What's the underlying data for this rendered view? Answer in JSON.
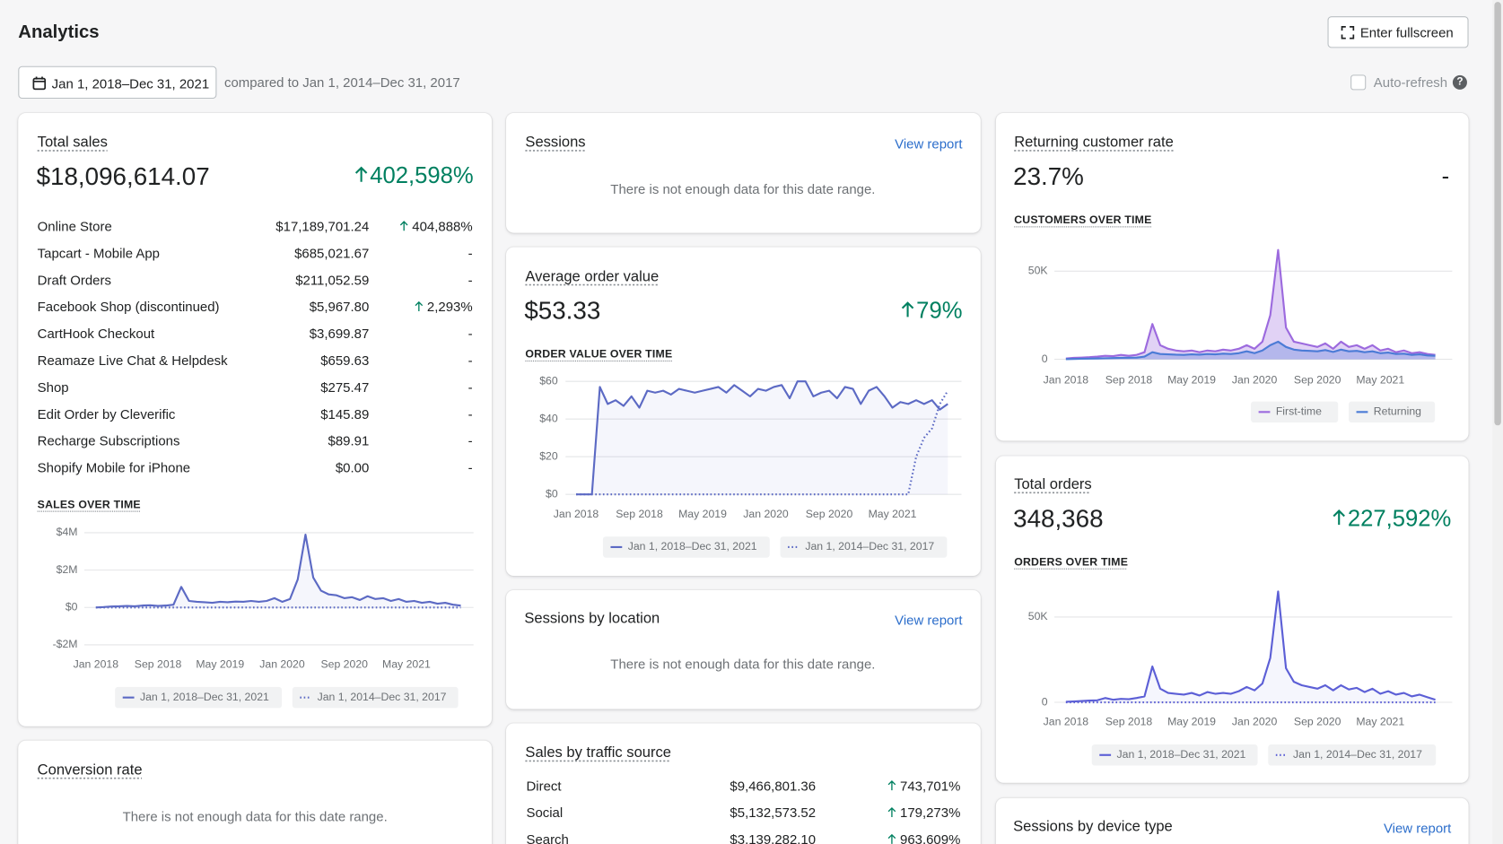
{
  "header": {
    "title": "Analytics",
    "fullscreen_button": "Enter fullscreen",
    "date_range": "Jan 1, 2018–Dec 31, 2021",
    "comparison": "compared to Jan 1, 2014–Dec 31, 2017",
    "auto_refresh": "Auto-refresh",
    "help_icon": "?"
  },
  "cards": {
    "total_sales": {
      "title": "Total sales",
      "value": "$18,096,614.07",
      "change": "402,598%",
      "trend": "up",
      "rows": [
        {
          "channel": "Online Store",
          "sales": "$17,189,701.24",
          "change": "404,888%",
          "trend": "up"
        },
        {
          "channel": "Tapcart - Mobile App",
          "sales": "$685,021.67",
          "change": "-"
        },
        {
          "channel": "Draft Orders",
          "sales": "$211,052.59",
          "change": "-"
        },
        {
          "channel": "Facebook Shop (discontinued)",
          "sales": "$5,967.80",
          "change": "2,293%",
          "trend": "up"
        },
        {
          "channel": "CartHook Checkout",
          "sales": "$3,699.87",
          "change": "-"
        },
        {
          "channel": "Reamaze Live Chat & Helpdesk",
          "sales": "$659.63",
          "change": "-"
        },
        {
          "channel": "Shop",
          "sales": "$275.47",
          "change": "-"
        },
        {
          "channel": "Edit Order by Cleverific",
          "sales": "$145.89",
          "change": "-"
        },
        {
          "channel": "Recharge Subscriptions",
          "sales": "$89.91",
          "change": "-"
        },
        {
          "channel": "Shopify Mobile for iPhone",
          "sales": "$0.00",
          "change": "-"
        }
      ]
    },
    "conversion_rate": {
      "title": "Conversion rate",
      "message": "There is not enough data for this date range."
    },
    "sessions": {
      "title": "Sessions",
      "link": "View report",
      "message": "There is not enough data for this date range."
    },
    "average_order_value": {
      "title": "Average order value",
      "value": "$53.33",
      "change": "79%",
      "trend": "up"
    },
    "sessions_by_location": {
      "title": "Sessions by location",
      "link": "View report",
      "message": "There is not enough data for this date range."
    },
    "sales_by_traffic_source": {
      "title": "Sales by traffic source",
      "rows": [
        {
          "source": "Direct",
          "sales": "$9,466,801.36",
          "change": "743,701%",
          "trend": "up"
        },
        {
          "source": "Social",
          "sales": "$5,132,573.52",
          "change": "179,273%",
          "trend": "up"
        },
        {
          "source": "Search",
          "sales": "$3,139,282.10",
          "change": "963,609%",
          "trend": "up"
        }
      ]
    },
    "returning_customer_rate": {
      "title": "Returning customer rate",
      "value": "23.7%",
      "change": "-"
    },
    "total_orders": {
      "title": "Total orders",
      "value": "348,368",
      "change": "227,592%",
      "trend": "up"
    },
    "sessions_by_device_type": {
      "title": "Sessions by device type",
      "link": "View report"
    }
  },
  "chart_data": [
    {
      "type": "line",
      "title": "SALES OVER TIME",
      "grid": true,
      "categories": [
        "Jan 2018",
        null,
        null,
        null,
        null,
        null,
        null,
        null,
        "Sep 2018",
        null,
        null,
        null,
        null,
        null,
        null,
        null,
        "May 2019",
        null,
        null,
        null,
        null,
        null,
        null,
        null,
        "Jan 2020",
        null,
        null,
        null,
        null,
        null,
        null,
        null,
        "Sep 2020",
        null,
        null,
        null,
        null,
        null,
        null,
        null,
        "May 2021",
        null,
        null,
        null,
        null,
        null,
        null,
        null
      ],
      "ylim": [
        -2000000,
        4000000
      ],
      "yticks": [
        {
          "value": 4000000,
          "label": "$4M"
        },
        {
          "value": 2000000,
          "label": "$2M"
        },
        {
          "value": 0,
          "label": "$0"
        },
        {
          "value": -2000000,
          "label": "-$2M"
        }
      ],
      "series": [
        {
          "name": "Jan 1, 2018–Dec 31, 2021",
          "color": "#5c6ac4",
          "line_style": "solid",
          "values": [
            0,
            20000,
            50000,
            60000,
            80000,
            60000,
            100000,
            120000,
            80000,
            100000,
            150000,
            1100000,
            350000,
            300000,
            280000,
            250000,
            300000,
            280000,
            320000,
            300000,
            350000,
            300000,
            350000,
            500000,
            300000,
            450000,
            1500000,
            3900000,
            1600000,
            900000,
            700000,
            650000,
            500000,
            550000,
            400000,
            600000,
            450000,
            500000,
            350000,
            450000,
            300000,
            350000,
            250000,
            300000,
            200000,
            250000,
            150000,
            100000
          ]
        },
        {
          "name": "Jan 1, 2014–Dec 31, 2017",
          "color": "#5c6ac4",
          "line_style": "dotted",
          "values": [
            0,
            0,
            0,
            0,
            0,
            0,
            0,
            0,
            0,
            0,
            0,
            0,
            0,
            0,
            0,
            0,
            0,
            0,
            0,
            0,
            0,
            0,
            0,
            0,
            0,
            0,
            0,
            0,
            0,
            0,
            0,
            0,
            0,
            0,
            0,
            0,
            0,
            0,
            0,
            0,
            0,
            0,
            0,
            0,
            0,
            0,
            0,
            0
          ]
        }
      ]
    },
    {
      "type": "line",
      "title": "ORDER VALUE OVER TIME",
      "grid": true,
      "categories": [
        "Jan 2018",
        null,
        null,
        null,
        null,
        null,
        null,
        null,
        "Sep 2018",
        null,
        null,
        null,
        null,
        null,
        null,
        null,
        "May 2019",
        null,
        null,
        null,
        null,
        null,
        null,
        null,
        "Jan 2020",
        null,
        null,
        null,
        null,
        null,
        null,
        null,
        "Sep 2020",
        null,
        null,
        null,
        null,
        null,
        null,
        null,
        "May 2021",
        null,
        null,
        null,
        null,
        null,
        null,
        null
      ],
      "ylim": [
        0,
        60
      ],
      "yticks": [
        {
          "value": 60,
          "label": "$60"
        },
        {
          "value": 40,
          "label": "$40"
        },
        {
          "value": 20,
          "label": "$20"
        },
        {
          "value": 0,
          "label": "$0"
        }
      ],
      "series": [
        {
          "name": "Jan 1, 2018–Dec 31, 2021",
          "color": "#5c6ac4",
          "line_style": "solid",
          "values": [
            0,
            0,
            0,
            57,
            48,
            50,
            47,
            52,
            46,
            55,
            54,
            55,
            53,
            56,
            55,
            54,
            55,
            56,
            57,
            54,
            58,
            55,
            52,
            56,
            55,
            57,
            58,
            51,
            60,
            60,
            52,
            54,
            55,
            51,
            57,
            56,
            48,
            55,
            57,
            52,
            46,
            49,
            48,
            50,
            48,
            50,
            45,
            48
          ]
        },
        {
          "name": "Jan 1, 2014–Dec 31, 2017",
          "color": "#5c6ac4",
          "line_style": "dotted",
          "values": [
            0,
            0,
            0,
            0,
            0,
            0,
            0,
            0,
            0,
            0,
            0,
            0,
            0,
            0,
            0,
            0,
            0,
            0,
            0,
            0,
            0,
            0,
            0,
            0,
            0,
            0,
            0,
            0,
            0,
            0,
            0,
            0,
            0,
            0,
            0,
            0,
            0,
            0,
            0,
            0,
            0,
            0,
            0,
            20,
            30,
            35,
            48,
            55
          ]
        }
      ]
    },
    {
      "type": "line",
      "title": "CUSTOMERS OVER TIME",
      "grid": true,
      "categories": [
        "Jan 2018",
        null,
        null,
        null,
        null,
        null,
        null,
        null,
        "Sep 2018",
        null,
        null,
        null,
        null,
        null,
        null,
        null,
        "May 2019",
        null,
        null,
        null,
        null,
        null,
        null,
        null,
        "Jan 2020",
        null,
        null,
        null,
        null,
        null,
        null,
        null,
        "Sep 2020",
        null,
        null,
        null,
        null,
        null,
        null,
        null,
        "May 2021",
        null,
        null,
        null,
        null,
        null,
        null,
        null
      ],
      "ylim": [
        0,
        65000
      ],
      "yticks": [
        {
          "value": 50000,
          "label": "50K"
        },
        0
      ],
      "series": [
        {
          "name": "First-time",
          "color": "#9c6ade",
          "line_style": "solid",
          "values": [
            500,
            800,
            1000,
            1200,
            1500,
            2000,
            1800,
            2500,
            2000,
            2500,
            4000,
            20000,
            8000,
            6000,
            5000,
            4500,
            5000,
            4000,
            5000,
            4500,
            5500,
            5000,
            6000,
            8000,
            6000,
            10000,
            25000,
            62000,
            18000,
            10000,
            9000,
            8000,
            7000,
            9000,
            6000,
            10000,
            7000,
            8000,
            6000,
            8000,
            5000,
            6000,
            4000,
            5000,
            3500,
            4000,
            3000,
            2500
          ]
        },
        {
          "name": "Returning",
          "color": "#4b7bd6",
          "line_style": "solid",
          "values": [
            100,
            200,
            300,
            400,
            500,
            600,
            700,
            800,
            900,
            1000,
            1500,
            4000,
            3000,
            2800,
            2600,
            2500,
            2800,
            2600,
            3000,
            2800,
            3200,
            3000,
            3500,
            4500,
            3500,
            5000,
            8000,
            10000,
            7000,
            5500,
            5000,
            4800,
            4500,
            5200,
            4200,
            5500,
            4500,
            4800,
            4000,
            4500,
            3500,
            3800,
            3000,
            3200,
            2500,
            2800,
            2200,
            2000
          ]
        }
      ]
    },
    {
      "type": "line",
      "title": "ORDERS OVER TIME",
      "grid": true,
      "categories": [
        "Jan 2018",
        null,
        null,
        null,
        null,
        null,
        null,
        null,
        "Sep 2018",
        null,
        null,
        null,
        null,
        null,
        null,
        null,
        "May 2019",
        null,
        null,
        null,
        null,
        null,
        null,
        null,
        "Jan 2020",
        null,
        null,
        null,
        null,
        null,
        null,
        null,
        "Sep 2020",
        null,
        null,
        null,
        null,
        null,
        null,
        null,
        "May 2021",
        null,
        null,
        null,
        null,
        null,
        null,
        null
      ],
      "ylim": [
        0,
        70000
      ],
      "yticks": [
        {
          "value": 50000,
          "label": "50K"
        },
        0
      ],
      "series": [
        {
          "name": "Jan 1, 2018–Dec 31, 2021",
          "color": "#5c5fd6",
          "line_style": "solid",
          "values": [
            300,
            500,
            800,
            1000,
            1200,
            2500,
            1500,
            2000,
            1800,
            2500,
            3500,
            21000,
            8000,
            5500,
            5000,
            4500,
            5500,
            4000,
            6000,
            5000,
            5500,
            5000,
            6500,
            9000,
            7000,
            11000,
            26000,
            65000,
            20000,
            12000,
            10000,
            9000,
            8000,
            10000,
            7000,
            10000,
            7500,
            8500,
            6000,
            8000,
            5000,
            6500,
            4500,
            5500,
            3500,
            4500,
            3000,
            1500
          ]
        },
        {
          "name": "Jan 1, 2014–Dec 31, 2017",
          "color": "#5c5fd6",
          "line_style": "dotted",
          "values": [
            0,
            0,
            0,
            0,
            0,
            0,
            0,
            0,
            0,
            0,
            0,
            0,
            0,
            0,
            0,
            0,
            0,
            0,
            0,
            0,
            0,
            0,
            0,
            0,
            0,
            0,
            0,
            0,
            0,
            0,
            0,
            0,
            0,
            0,
            0,
            0,
            0,
            0,
            0,
            0,
            0,
            0,
            0,
            0,
            0,
            0,
            0,
            0
          ]
        }
      ]
    }
  ]
}
